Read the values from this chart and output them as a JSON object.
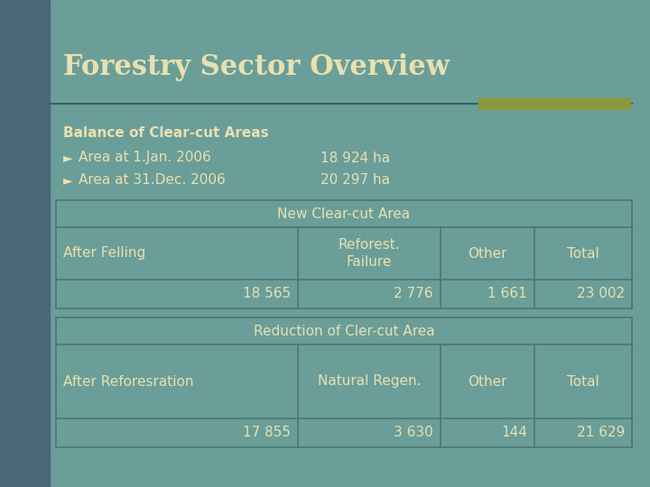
{
  "title": "Forestry Sector Overview",
  "title_color": "#e8e0b0",
  "bg_color": "#6b9e98",
  "left_bar_color": "#4a6878",
  "accent_bar_color": "#8a9a3a",
  "table_line_color": "#4a7870",
  "text_color": "#e8e0b0",
  "subtitle": "Balance of Clear-cut Areas",
  "bullet1_label": "Area at 1.Jan. 2006",
  "bullet1_value": "18 924 ha",
  "bullet2_label": "Area at 31.Dec. 2006",
  "bullet2_value": "20 297 ha",
  "table1_header": "New Clear-cut Area",
  "table1_col1": "After Felling",
  "table1_col2": "Reforest.\nFailure",
  "table1_col3": "Other",
  "table1_col4": "Total",
  "table1_val1": "18 565",
  "table1_val2": "2 776",
  "table1_val3": "1 661",
  "table1_val4": "23 002",
  "table2_header": "Reduction of Cler-cut Area",
  "table2_col1": "After Reforesration",
  "table2_col2": "Natural Regen.",
  "table2_col3": "Other",
  "table2_col4": "Total",
  "table2_val1": "17 855",
  "table2_val2": "3 630",
  "table2_val3": "144",
  "table2_val4": "21 629"
}
